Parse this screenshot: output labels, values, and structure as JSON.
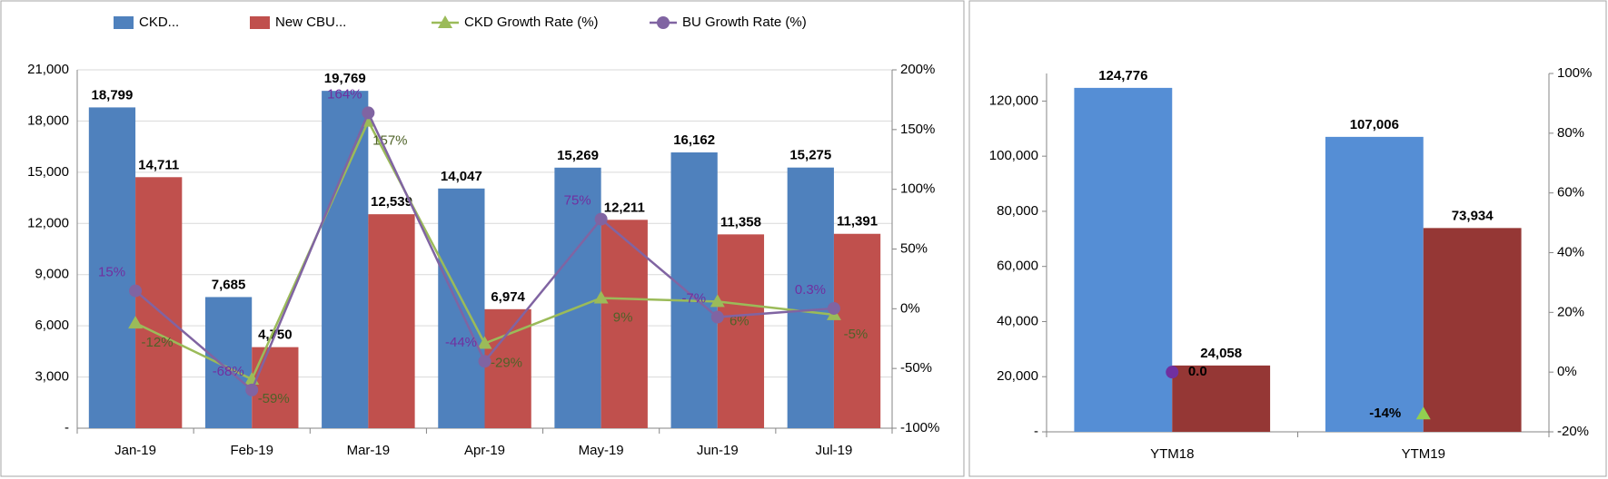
{
  "chart_data": [
    {
      "type": "bar",
      "categories": [
        "Jan-19",
        "Feb-19",
        "Mar-19",
        "Apr-19",
        "May-19",
        "Jun-19",
        "Jul-19"
      ],
      "series": [
        {
          "name": "CKD...",
          "color": "#4f81bd",
          "values": [
            18799,
            7685,
            19769,
            14047,
            15269,
            16162,
            15275
          ],
          "value_labels": [
            "18,799",
            "7,685",
            "19,769",
            "14,047",
            "15,269",
            "16,162",
            "15,275"
          ]
        },
        {
          "name": "New CBU...",
          "color": "#c0504d",
          "values": [
            14711,
            4750,
            12539,
            6974,
            12211,
            11358,
            11391
          ],
          "value_labels": [
            "14,711",
            "4,750",
            "12,539",
            "6,974",
            "12,211",
            "11,358",
            "11,391"
          ]
        },
        {
          "name": "CKD Growth Rate (%)",
          "type": "line",
          "axis": "y2",
          "marker": "triangle",
          "color": "#9bbb59",
          "label_color": "#4f6228",
          "values": [
            -12,
            -59,
            157,
            -29,
            9,
            6,
            -5
          ],
          "value_labels": [
            "-12%",
            "-59%",
            "157%",
            "-29%",
            "9%",
            "6%",
            "-5%"
          ]
        },
        {
          "name": "BU Growth Rate (%)",
          "type": "line",
          "axis": "y2",
          "marker": "circle",
          "color": "#8064a2",
          "label_color": "#7030a0",
          "values": [
            15,
            -68,
            164,
            -44,
            75,
            -7,
            0.3
          ],
          "value_labels": [
            "15%",
            "-68%",
            "164%",
            "-44%",
            "75%",
            "-7%",
            "0.3%"
          ]
        }
      ],
      "ylim": [
        0,
        21000
      ],
      "yticks": [
        {
          "value": 0,
          "label": "-"
        },
        {
          "value": 3000,
          "label": "3,000"
        },
        {
          "value": 6000,
          "label": "6,000"
        },
        {
          "value": 9000,
          "label": "9,000"
        },
        {
          "value": 12000,
          "label": "12,000"
        },
        {
          "value": 15000,
          "label": "15,000"
        },
        {
          "value": 18000,
          "label": "18,000"
        },
        {
          "value": 21000,
          "label": "21,000"
        }
      ],
      "y2lim": [
        -100,
        200
      ],
      "y2ticks": [
        {
          "value": -100,
          "label": "-100%"
        },
        {
          "value": -50,
          "label": "-50%"
        },
        {
          "value": 0,
          "label": "0%"
        },
        {
          "value": 50,
          "label": "50%"
        },
        {
          "value": 100,
          "label": "100%"
        },
        {
          "value": 150,
          "label": "150%"
        },
        {
          "value": 200,
          "label": "200%"
        }
      ],
      "grid": true,
      "legend": "top"
    },
    {
      "type": "bar",
      "categories": [
        "YTM18",
        "YTM19"
      ],
      "series": [
        {
          "color": "#558ed5",
          "values": [
            124776,
            107006
          ],
          "value_labels": [
            "124,776",
            "107,006"
          ]
        },
        {
          "color": "#953735",
          "values": [
            24058,
            73934
          ],
          "value_labels": [
            "24,058",
            "73,934"
          ]
        },
        {
          "type": "line",
          "axis": "y2",
          "marker": "circle",
          "color": "#7030a0",
          "label_color": "#000",
          "values": [
            0,
            null
          ],
          "value_labels": [
            "0.0",
            null
          ]
        },
        {
          "type": "line",
          "axis": "y2",
          "marker": "triangle",
          "color": "#92d050",
          "label_color": "#000",
          "values": [
            null,
            -14
          ],
          "value_labels": [
            null,
            "-14%"
          ]
        }
      ],
      "ylim": [
        0,
        130000
      ],
      "yticks": [
        {
          "value": 0,
          "label": "-"
        },
        {
          "value": 20000,
          "label": "20,000"
        },
        {
          "value": 40000,
          "label": "40,000"
        },
        {
          "value": 60000,
          "label": "60,000"
        },
        {
          "value": 80000,
          "label": "80,000"
        },
        {
          "value": 100000,
          "label": "100,000"
        },
        {
          "value": 120000,
          "label": "120,000"
        }
      ],
      "y2lim": [
        -20,
        100
      ],
      "y2ticks": [
        {
          "value": -20,
          "label": "-20%"
        },
        {
          "value": 0,
          "label": "0%"
        },
        {
          "value": 20,
          "label": "20%"
        },
        {
          "value": 40,
          "label": "40%"
        },
        {
          "value": 60,
          "label": "60%"
        },
        {
          "value": 80,
          "label": "80%"
        },
        {
          "value": 100,
          "label": "100%"
        }
      ],
      "grid": false
    }
  ]
}
